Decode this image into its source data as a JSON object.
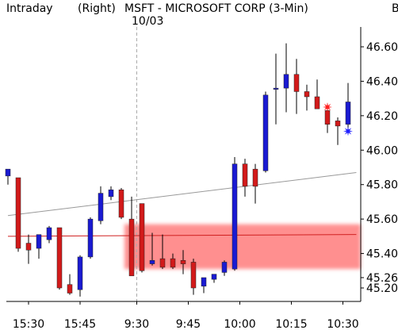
{
  "header": {
    "interval": "Intraday",
    "axis_side": "(Right)",
    "title": "MSFT - MICROSOFT CORP (3-Min)",
    "date": "10/03",
    "edge_mark": "B"
  },
  "colors": {
    "up": "#1a1ad2",
    "down": "#d21a1a",
    "ma_gray": "#999999",
    "ma_red": "#d02020",
    "band": "#ff8a8a",
    "star_red": "#ff2020",
    "star_blue": "#2020ff"
  },
  "chart_data": {
    "type": "candlestick",
    "title": "MSFT - MICROSOFT CORP (3-Min)",
    "ylim": [
      45.14,
      46.68
    ],
    "y_ticks": [
      {
        "v": 46.6,
        "label": "46.60"
      },
      {
        "v": 46.4,
        "label": "46.40"
      },
      {
        "v": 46.2,
        "label": "46.20"
      },
      {
        "v": 46.0,
        "label": "46.00"
      },
      {
        "v": 45.8,
        "label": "45.80"
      },
      {
        "v": 45.6,
        "label": "45.60"
      },
      {
        "v": 45.4,
        "label": "45.40"
      },
      {
        "v": 45.26,
        "label": "45.26"
      },
      {
        "v": 45.2,
        "label": "45.20"
      }
    ],
    "x_ticks": [
      {
        "i": 2,
        "label": "15:30"
      },
      {
        "i": 7,
        "label": "15:45"
      },
      {
        "i": 12.5,
        "label": "9:30"
      },
      {
        "i": 17.5,
        "label": "9:45"
      },
      {
        "i": 22.5,
        "label": "10:00"
      },
      {
        "i": 27.5,
        "label": "10:15"
      },
      {
        "i": 32.5,
        "label": "10:30"
      }
    ],
    "session_break_index": 12.5,
    "candles": [
      {
        "o": 45.85,
        "h": 45.89,
        "l": 45.8,
        "c": 45.89
      },
      {
        "o": 45.84,
        "h": 45.84,
        "l": 45.41,
        "c": 45.43
      },
      {
        "o": 45.46,
        "h": 45.51,
        "l": 45.34,
        "c": 45.42
      },
      {
        "o": 45.43,
        "h": 45.51,
        "l": 45.37,
        "c": 45.51
      },
      {
        "o": 45.48,
        "h": 45.56,
        "l": 45.46,
        "c": 45.55
      },
      {
        "o": 45.55,
        "h": 45.55,
        "l": 45.19,
        "c": 45.2
      },
      {
        "o": 45.22,
        "h": 45.28,
        "l": 45.16,
        "c": 45.17
      },
      {
        "o": 45.19,
        "h": 45.39,
        "l": 45.15,
        "c": 45.38
      },
      {
        "o": 45.38,
        "h": 45.61,
        "l": 45.37,
        "c": 45.6
      },
      {
        "o": 45.59,
        "h": 45.79,
        "l": 45.57,
        "c": 45.75
      },
      {
        "o": 45.73,
        "h": 45.79,
        "l": 45.71,
        "c": 45.77
      },
      {
        "o": 45.77,
        "h": 45.78,
        "l": 45.6,
        "c": 45.61
      },
      {
        "o": 45.6,
        "h": 45.73,
        "l": 45.27,
        "c": 45.27
      },
      {
        "o": 45.69,
        "h": 45.69,
        "l": 45.29,
        "c": 45.3
      },
      {
        "o": 45.34,
        "h": 45.52,
        "l": 45.33,
        "c": 45.36
      },
      {
        "o": 45.37,
        "h": 45.51,
        "l": 45.31,
        "c": 45.32
      },
      {
        "o": 45.37,
        "h": 45.4,
        "l": 45.31,
        "c": 45.32
      },
      {
        "o": 45.36,
        "h": 45.42,
        "l": 45.28,
        "c": 45.34
      },
      {
        "o": 45.35,
        "h": 45.37,
        "l": 45.16,
        "c": 45.2
      },
      {
        "o": 45.21,
        "h": 45.26,
        "l": 45.17,
        "c": 45.26
      },
      {
        "o": 45.25,
        "h": 45.28,
        "l": 45.23,
        "c": 45.28
      },
      {
        "o": 45.29,
        "h": 45.36,
        "l": 45.27,
        "c": 45.35
      },
      {
        "o": 45.31,
        "h": 45.96,
        "l": 45.3,
        "c": 45.92
      },
      {
        "o": 45.92,
        "h": 45.95,
        "l": 45.73,
        "c": 45.79
      },
      {
        "o": 45.89,
        "h": 45.92,
        "l": 45.69,
        "c": 45.79
      },
      {
        "o": 45.88,
        "h": 46.34,
        "l": 45.87,
        "c": 46.32
      },
      {
        "o": 46.36,
        "h": 46.56,
        "l": 46.15,
        "c": 46.36
      },
      {
        "o": 46.36,
        "h": 46.62,
        "l": 46.22,
        "c": 46.44
      },
      {
        "o": 46.44,
        "h": 46.53,
        "l": 46.21,
        "c": 46.34
      },
      {
        "o": 46.34,
        "h": 46.38,
        "l": 46.23,
        "c": 46.31
      },
      {
        "o": 46.31,
        "h": 46.41,
        "l": 46.24,
        "c": 46.24
      },
      {
        "o": 46.23,
        "h": 46.27,
        "l": 46.1,
        "c": 46.15
      },
      {
        "o": 46.17,
        "h": 46.19,
        "l": 46.03,
        "c": 46.14
      },
      {
        "o": 46.15,
        "h": 46.39,
        "l": 46.12,
        "c": 46.28
      }
    ],
    "moving_averages": [
      {
        "name": "MA-long",
        "color": "#999999",
        "from": [
          0,
          45.62
        ],
        "to": [
          33.8,
          45.87
        ]
      },
      {
        "name": "MA-short",
        "color": "#d02020",
        "from": [
          0,
          45.5
        ],
        "to": [
          33.8,
          45.51
        ]
      }
    ],
    "band": {
      "from_index": 11.3,
      "y_low": 45.31,
      "y_high": 45.57
    },
    "signals": [
      {
        "type": "sell",
        "i": 31,
        "y": 46.25,
        "color": "#ff2020"
      },
      {
        "type": "buy",
        "i": 33,
        "y": 46.11,
        "color": "#2020ff"
      }
    ]
  }
}
